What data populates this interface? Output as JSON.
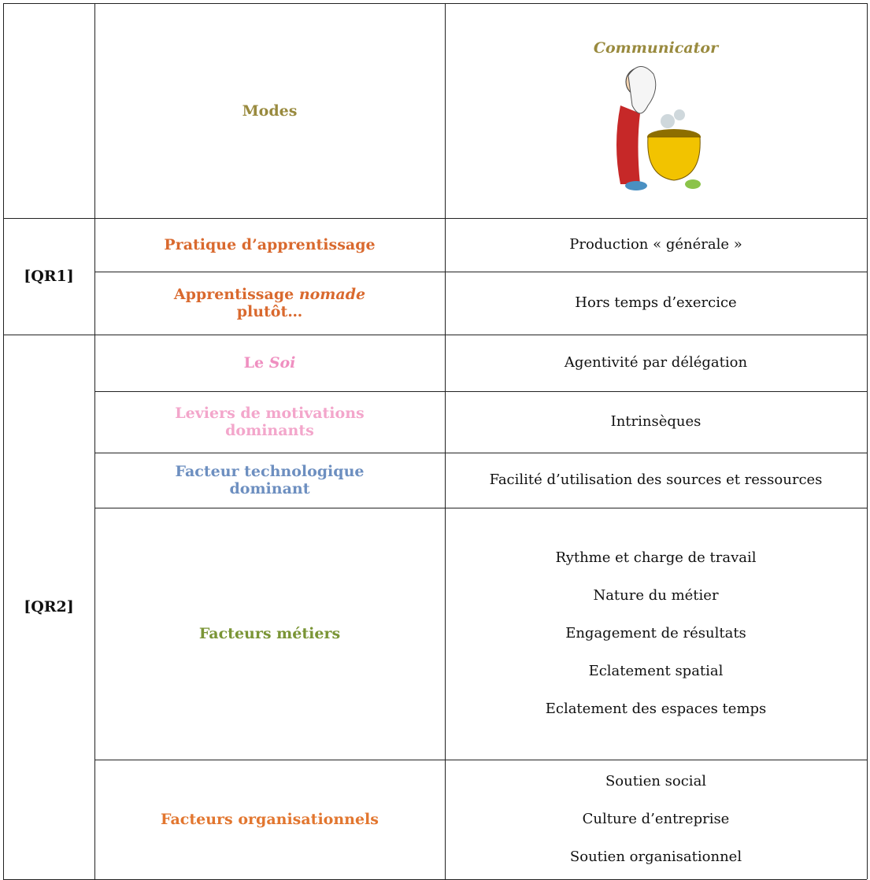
{
  "header": {
    "modes": "Modes",
    "communicator": "Communicator"
  },
  "groups": [
    {
      "label": "[QR1]",
      "rows": [
        {
          "label": [
            {
              "text": "Pratique d’apprentissage",
              "italic": false
            }
          ],
          "color": "#d9692e",
          "values": [
            "Production « générale »"
          ]
        },
        {
          "label": [
            {
              "text": "Apprentissage ",
              "italic": false
            },
            {
              "text": "nomade",
              "italic": true
            },
            {
              "text": " plutôt…",
              "italic": false
            }
          ],
          "color": "#d9692e",
          "values": [
            "Hors temps d’exercice"
          ]
        }
      ]
    },
    {
      "label": "[QR2]",
      "rows": [
        {
          "label": [
            {
              "text": "Le ",
              "italic": false
            },
            {
              "text": "Soi",
              "italic": true
            }
          ],
          "color": "#ef8fc0",
          "values": [
            "Agentivité par délégation"
          ]
        },
        {
          "label": [
            {
              "text": "Leviers de motivations dominants",
              "italic": false
            }
          ],
          "color": "#f3a6cb",
          "values": [
            "Intrinsèques"
          ]
        },
        {
          "label": [
            {
              "text": "Facteur technologique dominant",
              "italic": false
            }
          ],
          "color": "#6d8fc0",
          "values": [
            "Facilité d’utilisation des sources et ressources"
          ]
        },
        {
          "label": [
            {
              "text": "Facteurs métiers",
              "italic": false
            }
          ],
          "color": "#7a9536",
          "values": [
            "Rythme et charge de travail",
            "Nature du métier",
            "Engagement de résultats",
            "Eclatement spatial",
            "Eclatement des espaces temps"
          ]
        },
        {
          "label": [
            {
              "text": "Facteurs organisationnels",
              "italic": false
            }
          ],
          "color": "#e2762f",
          "values": [
            "Soutien social",
            "Culture d’entreprise",
            "Soutien organisationnel"
          ]
        }
      ]
    }
  ]
}
